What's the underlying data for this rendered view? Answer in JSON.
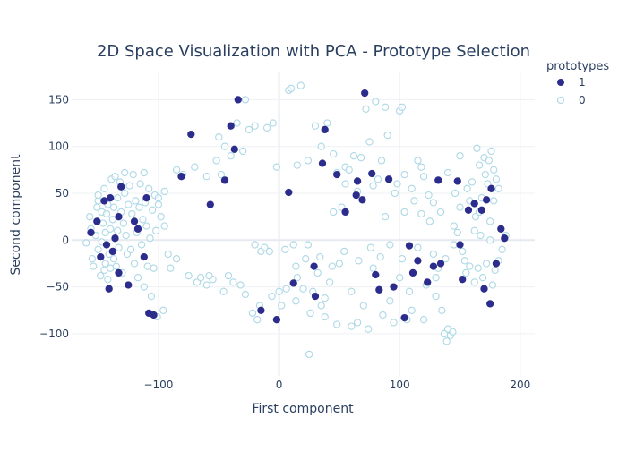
{
  "chart_data": {
    "type": "scatter",
    "title": "2D Space Visualization with PCA - Prototype Selection",
    "xlabel": "First component",
    "ylabel": "Second component",
    "xlim": [
      -172,
      212
    ],
    "ylim": [
      -145,
      180
    ],
    "x_ticks": [
      -100,
      0,
      100,
      200
    ],
    "x_tick_labels": [
      "−100",
      "0",
      "100",
      "200"
    ],
    "y_ticks": [
      -100,
      -50,
      0,
      50,
      100,
      150
    ],
    "y_tick_labels": [
      "−100",
      "−50",
      "0",
      "50",
      "100",
      "150"
    ],
    "grid": true,
    "legend": {
      "title": "prototypes",
      "position": "top-right",
      "entries": [
        {
          "label": "1",
          "color": "#2c2c8c",
          "style": "filled"
        },
        {
          "label": "0",
          "color": "#add8e6",
          "style": "open"
        }
      ]
    },
    "series": [
      {
        "name": "1",
        "color": "#2c2c8c",
        "points": [
          [
            -34,
            150
          ],
          [
            -73,
            113
          ],
          [
            -40,
            122
          ],
          [
            -37,
            97
          ],
          [
            -45,
            64
          ],
          [
            -57,
            38
          ],
          [
            -15,
            -75
          ],
          [
            -2,
            -85
          ],
          [
            8,
            51
          ],
          [
            12,
            -46
          ],
          [
            30,
            -60
          ],
          [
            29,
            -28
          ],
          [
            36,
            82
          ],
          [
            38,
            118
          ],
          [
            48,
            70
          ],
          [
            55,
            30
          ],
          [
            64,
            48
          ],
          [
            65,
            63
          ],
          [
            69,
            43
          ],
          [
            71,
            157
          ],
          [
            77,
            71
          ],
          [
            80,
            -37
          ],
          [
            83,
            -53
          ],
          [
            91,
            65
          ],
          [
            95,
            -50
          ],
          [
            104,
            -83
          ],
          [
            108,
            -6
          ],
          [
            111,
            -35
          ],
          [
            115,
            -22
          ],
          [
            123,
            -45
          ],
          [
            128,
            -28
          ],
          [
            132,
            64
          ],
          [
            134,
            -25
          ],
          [
            148,
            63
          ],
          [
            150,
            -5
          ],
          [
            152,
            -42
          ],
          [
            157,
            32
          ],
          [
            162,
            39
          ],
          [
            168,
            32
          ],
          [
            170,
            -52
          ],
          [
            172,
            43
          ],
          [
            175,
            -68
          ],
          [
            176,
            55
          ],
          [
            180,
            -25
          ],
          [
            184,
            12
          ],
          [
            187,
            2
          ],
          [
            -145,
            42
          ],
          [
            -151,
            20
          ],
          [
            -148,
            -18
          ],
          [
            -141,
            -52
          ],
          [
            -138,
            -12
          ],
          [
            -136,
            2
          ],
          [
            -140,
            45
          ],
          [
            -133,
            25
          ],
          [
            -131,
            57
          ],
          [
            -120,
            20
          ],
          [
            -117,
            12
          ],
          [
            -112,
            -18
          ],
          [
            -110,
            45
          ],
          [
            -108,
            -78
          ],
          [
            -104,
            -80
          ],
          [
            -81,
            68
          ],
          [
            -156,
            8
          ],
          [
            -143,
            -5
          ],
          [
            -133,
            -35
          ],
          [
            -125,
            -48
          ]
        ]
      },
      {
        "name": "0",
        "color": "#add8e6",
        "points": [
          [
            -160,
            -3
          ],
          [
            -157,
            25
          ],
          [
            -156,
            12
          ],
          [
            -155,
            -20
          ],
          [
            -154,
            -28
          ],
          [
            -152,
            5
          ],
          [
            -151,
            35
          ],
          [
            -150,
            -10
          ],
          [
            -150,
            42
          ],
          [
            -148,
            -38
          ],
          [
            -147,
            30
          ],
          [
            -147,
            -2
          ],
          [
            -146,
            18
          ],
          [
            -145,
            -32
          ],
          [
            -144,
            8
          ],
          [
            -144,
            -25
          ],
          [
            -143,
            28
          ],
          [
            -142,
            -42
          ],
          [
            -142,
            38
          ],
          [
            -141,
            -15
          ],
          [
            -140,
            12
          ],
          [
            -140,
            -30
          ],
          [
            -139,
            65
          ],
          [
            -138,
            22
          ],
          [
            -137,
            -20
          ],
          [
            -137,
            35
          ],
          [
            -136,
            68
          ],
          [
            -135,
            -28
          ],
          [
            -134,
            10
          ],
          [
            -134,
            45
          ],
          [
            -133,
            -8
          ],
          [
            -132,
            62
          ],
          [
            -131,
            30
          ],
          [
            -130,
            -35
          ],
          [
            -129,
            18
          ],
          [
            -128,
            50
          ],
          [
            -127,
            5
          ],
          [
            -126,
            -15
          ],
          [
            -125,
            38
          ],
          [
            -124,
            58
          ],
          [
            -123,
            -10
          ],
          [
            -122,
            28
          ],
          [
            -121,
            70
          ],
          [
            -120,
            -25
          ],
          [
            -119,
            42
          ],
          [
            -118,
            8
          ],
          [
            -117,
            -40
          ],
          [
            -116,
            35
          ],
          [
            -115,
            60
          ],
          [
            -114,
            -5
          ],
          [
            -113,
            22
          ],
          [
            -112,
            -50
          ],
          [
            -111,
            40
          ],
          [
            -110,
            15
          ],
          [
            -109,
            -28
          ],
          [
            -108,
            55
          ],
          [
            -107,
            2
          ],
          [
            -106,
            -60
          ],
          [
            -105,
            32
          ],
          [
            -104,
            -30
          ],
          [
            -103,
            48
          ],
          [
            -102,
            10
          ],
          [
            -101,
            -82
          ],
          [
            -100,
            38
          ],
          [
            -98,
            25
          ],
          [
            -96,
            -75
          ],
          [
            -95,
            15
          ],
          [
            -90,
            -30
          ],
          [
            -85,
            75
          ],
          [
            -80,
            70
          ],
          [
            -75,
            -38
          ],
          [
            -68,
            -45
          ],
          [
            -65,
            -40
          ],
          [
            -60,
            -48
          ],
          [
            -55,
            -42
          ],
          [
            -50,
            110
          ],
          [
            -48,
            70
          ],
          [
            -45,
            100
          ],
          [
            -42,
            -38
          ],
          [
            -40,
            90
          ],
          [
            -38,
            -45
          ],
          [
            -35,
            125
          ],
          [
            -32,
            -48
          ],
          [
            -28,
            150
          ],
          [
            -25,
            118
          ],
          [
            -22,
            -78
          ],
          [
            -20,
            -5
          ],
          [
            -18,
            -85
          ],
          [
            -15,
            -12
          ],
          [
            -12,
            -8
          ],
          [
            -10,
            120
          ],
          [
            -8,
            -12
          ],
          [
            -5,
            125
          ],
          [
            -2,
            78
          ],
          [
            0,
            -55
          ],
          [
            2,
            -70
          ],
          [
            5,
            -10
          ],
          [
            8,
            160
          ],
          [
            10,
            162
          ],
          [
            12,
            -5
          ],
          [
            15,
            -40
          ],
          [
            18,
            165
          ],
          [
            20,
            -52
          ],
          [
            22,
            -20
          ],
          [
            24,
            85
          ],
          [
            25,
            -122
          ],
          [
            28,
            -55
          ],
          [
            30,
            122
          ],
          [
            32,
            -35
          ],
          [
            35,
            -70
          ],
          [
            38,
            -62
          ],
          [
            40,
            125
          ],
          [
            42,
            -45
          ],
          [
            45,
            30
          ],
          [
            48,
            72
          ],
          [
            50,
            -25
          ],
          [
            52,
            35
          ],
          [
            55,
            78
          ],
          [
            58,
            75
          ],
          [
            60,
            -55
          ],
          [
            62,
            90
          ],
          [
            65,
            -88
          ],
          [
            68,
            88
          ],
          [
            70,
            -70
          ],
          [
            72,
            140
          ],
          [
            75,
            105
          ],
          [
            78,
            -30
          ],
          [
            80,
            148
          ],
          [
            82,
            65
          ],
          [
            85,
            85
          ],
          [
            88,
            142
          ],
          [
            90,
            112
          ],
          [
            92,
            -65
          ],
          [
            95,
            -88
          ],
          [
            98,
            60
          ],
          [
            100,
            138
          ],
          [
            102,
            142
          ],
          [
            104,
            30
          ],
          [
            106,
            -85
          ],
          [
            108,
            -55
          ],
          [
            110,
            55
          ],
          [
            112,
            42
          ],
          [
            115,
            85
          ],
          [
            118,
            28
          ],
          [
            120,
            68
          ],
          [
            122,
            -48
          ],
          [
            125,
            20
          ],
          [
            128,
            40
          ],
          [
            130,
            -40
          ],
          [
            132,
            -30
          ],
          [
            135,
            -75
          ],
          [
            137,
            -100
          ],
          [
            139,
            -108
          ],
          [
            140,
            -95
          ],
          [
            142,
            -102
          ],
          [
            144,
            -98
          ],
          [
            145,
            15
          ],
          [
            146,
            50
          ],
          [
            148,
            8
          ],
          [
            150,
            35
          ],
          [
            152,
            -12
          ],
          [
            154,
            -22
          ],
          [
            155,
            -35
          ],
          [
            156,
            55
          ],
          [
            158,
            -28
          ],
          [
            160,
            62
          ],
          [
            162,
            -45
          ],
          [
            163,
            25
          ],
          [
            164,
            98
          ],
          [
            165,
            -30
          ],
          [
            166,
            80
          ],
          [
            167,
            5
          ],
          [
            168,
            45
          ],
          [
            169,
            -40
          ],
          [
            170,
            88
          ],
          [
            171,
            70
          ],
          [
            172,
            -25
          ],
          [
            173,
            60
          ],
          [
            174,
            85
          ],
          [
            175,
            20
          ],
          [
            176,
            95
          ],
          [
            177,
            -48
          ],
          [
            178,
            75
          ],
          [
            179,
            -32
          ],
          [
            180,
            65
          ],
          [
            182,
            -22
          ],
          [
            130,
            -60
          ],
          [
            120,
            -85
          ],
          [
            110,
            -75
          ],
          [
            100,
            -40
          ],
          [
            86,
            -80
          ],
          [
            74,
            -95
          ],
          [
            60,
            -92
          ],
          [
            48,
            -90
          ],
          [
            38,
            -82
          ],
          [
            26,
            -78
          ],
          [
            14,
            -65
          ],
          [
            6,
            -52
          ],
          [
            -6,
            -60
          ],
          [
            -16,
            -70
          ],
          [
            -28,
            -58
          ],
          [
            -46,
            -55
          ],
          [
            -58,
            -38
          ],
          [
            -85,
            -20
          ],
          [
            -92,
            -15
          ],
          [
            -145,
            55
          ],
          [
            -150,
            48
          ],
          [
            -128,
            72
          ],
          [
            -112,
            72
          ],
          [
            -100,
            45
          ],
          [
            -95,
            52
          ],
          [
            -70,
            78
          ],
          [
            -60,
            68
          ],
          [
            -52,
            85
          ],
          [
            -30,
            95
          ],
          [
            -20,
            122
          ],
          [
            15,
            80
          ],
          [
            35,
            100
          ],
          [
            45,
            92
          ],
          [
            55,
            60
          ],
          [
            65,
            52
          ],
          [
            78,
            58
          ],
          [
            88,
            25
          ],
          [
            96,
            50
          ],
          [
            104,
            70
          ],
          [
            118,
            78
          ],
          [
            124,
            48
          ],
          [
            134,
            30
          ],
          [
            140,
            72
          ],
          [
            150,
            90
          ],
          [
            158,
            42
          ],
          [
            166,
            30
          ],
          [
            178,
            42
          ],
          [
            182,
            55
          ],
          [
            185,
            -10
          ],
          [
            188,
            5
          ],
          [
            175,
            0
          ],
          [
            162,
            10
          ],
          [
            145,
            -5
          ],
          [
            138,
            -20
          ],
          [
            128,
            -15
          ],
          [
            115,
            -8
          ],
          [
            102,
            -20
          ],
          [
            92,
            -5
          ],
          [
            84,
            -18
          ],
          [
            76,
            -8
          ],
          [
            66,
            -22
          ],
          [
            54,
            -12
          ],
          [
            44,
            -28
          ],
          [
            34,
            -18
          ],
          [
            24,
            -5
          ],
          [
            14,
            -28
          ]
        ]
      }
    ]
  }
}
